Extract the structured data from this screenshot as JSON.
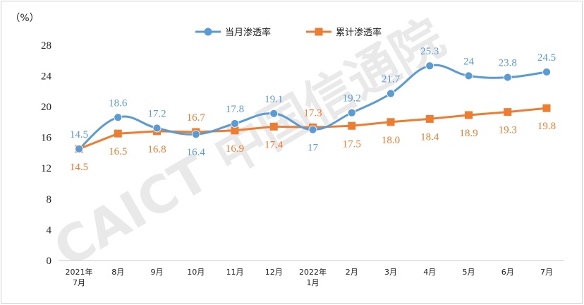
{
  "chart_data": {
    "type": "line",
    "unit_label": "（%）",
    "categories": [
      [
        "2021年",
        "7月"
      ],
      [
        "8月"
      ],
      [
        "9月"
      ],
      [
        "10月"
      ],
      [
        "11月"
      ],
      [
        "12月"
      ],
      [
        "2022年",
        "1月"
      ],
      [
        "2月"
      ],
      [
        "3月"
      ],
      [
        "4月"
      ],
      [
        "5月"
      ],
      [
        "6月"
      ],
      [
        "7月"
      ]
    ],
    "ylim": [
      0,
      28
    ],
    "yticks": [
      "0",
      "4",
      "8",
      "12",
      "16",
      "20",
      "24",
      "28"
    ],
    "grid": false,
    "legend_position": "top",
    "watermark": "CAICT 中国信通院",
    "series": [
      {
        "name": "当月渗透率",
        "color": "#5B9BD5",
        "marker": "circle",
        "smooth": true,
        "values": [
          14.5,
          18.6,
          17.2,
          16.4,
          17.8,
          19.1,
          17,
          19.2,
          21.7,
          25.3,
          24,
          23.8,
          24.5
        ],
        "labels": [
          "14.5",
          "18.6",
          "17.2",
          "16.4",
          "17.8",
          "19.1",
          "17",
          "19.2",
          "21.7",
          "25.3",
          "24",
          "23.8",
          "24.5"
        ]
      },
      {
        "name": "累计渗透率",
        "color": "#ED7D31",
        "marker": "square",
        "smooth": false,
        "values": [
          14.5,
          16.5,
          16.8,
          16.7,
          16.9,
          17.4,
          17.3,
          17.5,
          18.0,
          18.4,
          18.9,
          19.3,
          19.8
        ],
        "labels": [
          "14.5",
          "16.5",
          "16.8",
          "16.7",
          "16.9",
          "17.4",
          "17.3",
          "17.5",
          "18.0",
          "18.4",
          "18.9",
          "19.3",
          "19.8"
        ]
      }
    ]
  }
}
